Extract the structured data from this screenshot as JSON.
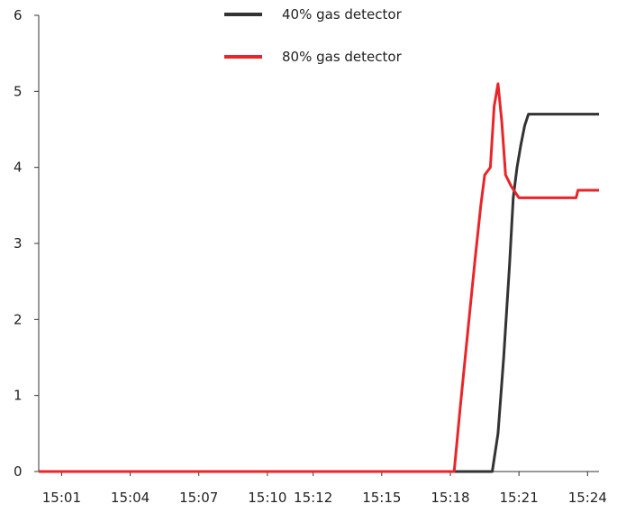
{
  "chart_data": {
    "type": "line",
    "title": "",
    "xlabel": "",
    "ylabel": "",
    "x_tick_labels": [
      "15:01",
      "15:04",
      "15:07",
      "15:10",
      "15:12",
      "15:15",
      "15:18",
      "15:21",
      "15:24"
    ],
    "y_tick_labels": [
      "0",
      "1",
      "2",
      "3",
      "4",
      "5",
      "6"
    ],
    "ylim": [
      0,
      6
    ],
    "xlim": [
      "15:00",
      "15:24:30"
    ],
    "grid": false,
    "legend_position": "top",
    "series": [
      {
        "name": "40% gas detector",
        "color": "#333333",
        "points": [
          [
            "15:00",
            0
          ],
          [
            "15:19:50",
            0
          ],
          [
            "15:20:05",
            0.5
          ],
          [
            "15:20:20",
            1.5
          ],
          [
            "15:20:35",
            2.7
          ],
          [
            "15:20:45",
            3.6
          ],
          [
            "15:20:55",
            4.0
          ],
          [
            "15:21:05",
            4.3
          ],
          [
            "15:21:15",
            4.55
          ],
          [
            "15:21:25",
            4.7
          ],
          [
            "15:24:30",
            4.7
          ]
        ]
      },
      {
        "name": "80% gas detector",
        "color": "#e8262a",
        "points": [
          [
            "15:00",
            0
          ],
          [
            "15:18:10",
            0
          ],
          [
            "15:18:25",
            0.8
          ],
          [
            "15:18:45",
            1.8
          ],
          [
            "15:19:05",
            2.8
          ],
          [
            "15:19:20",
            3.5
          ],
          [
            "15:19:30",
            3.9
          ],
          [
            "15:19:45",
            4.0
          ],
          [
            "15:19:55",
            4.8
          ],
          [
            "15:20:05",
            5.1
          ],
          [
            "15:20:15",
            4.6
          ],
          [
            "15:20:25",
            3.9
          ],
          [
            "15:20:40",
            3.75
          ],
          [
            "15:21:00",
            3.6
          ],
          [
            "15:23:30",
            3.6
          ],
          [
            "15:23:35",
            3.7
          ],
          [
            "15:24:30",
            3.7
          ]
        ]
      }
    ]
  }
}
